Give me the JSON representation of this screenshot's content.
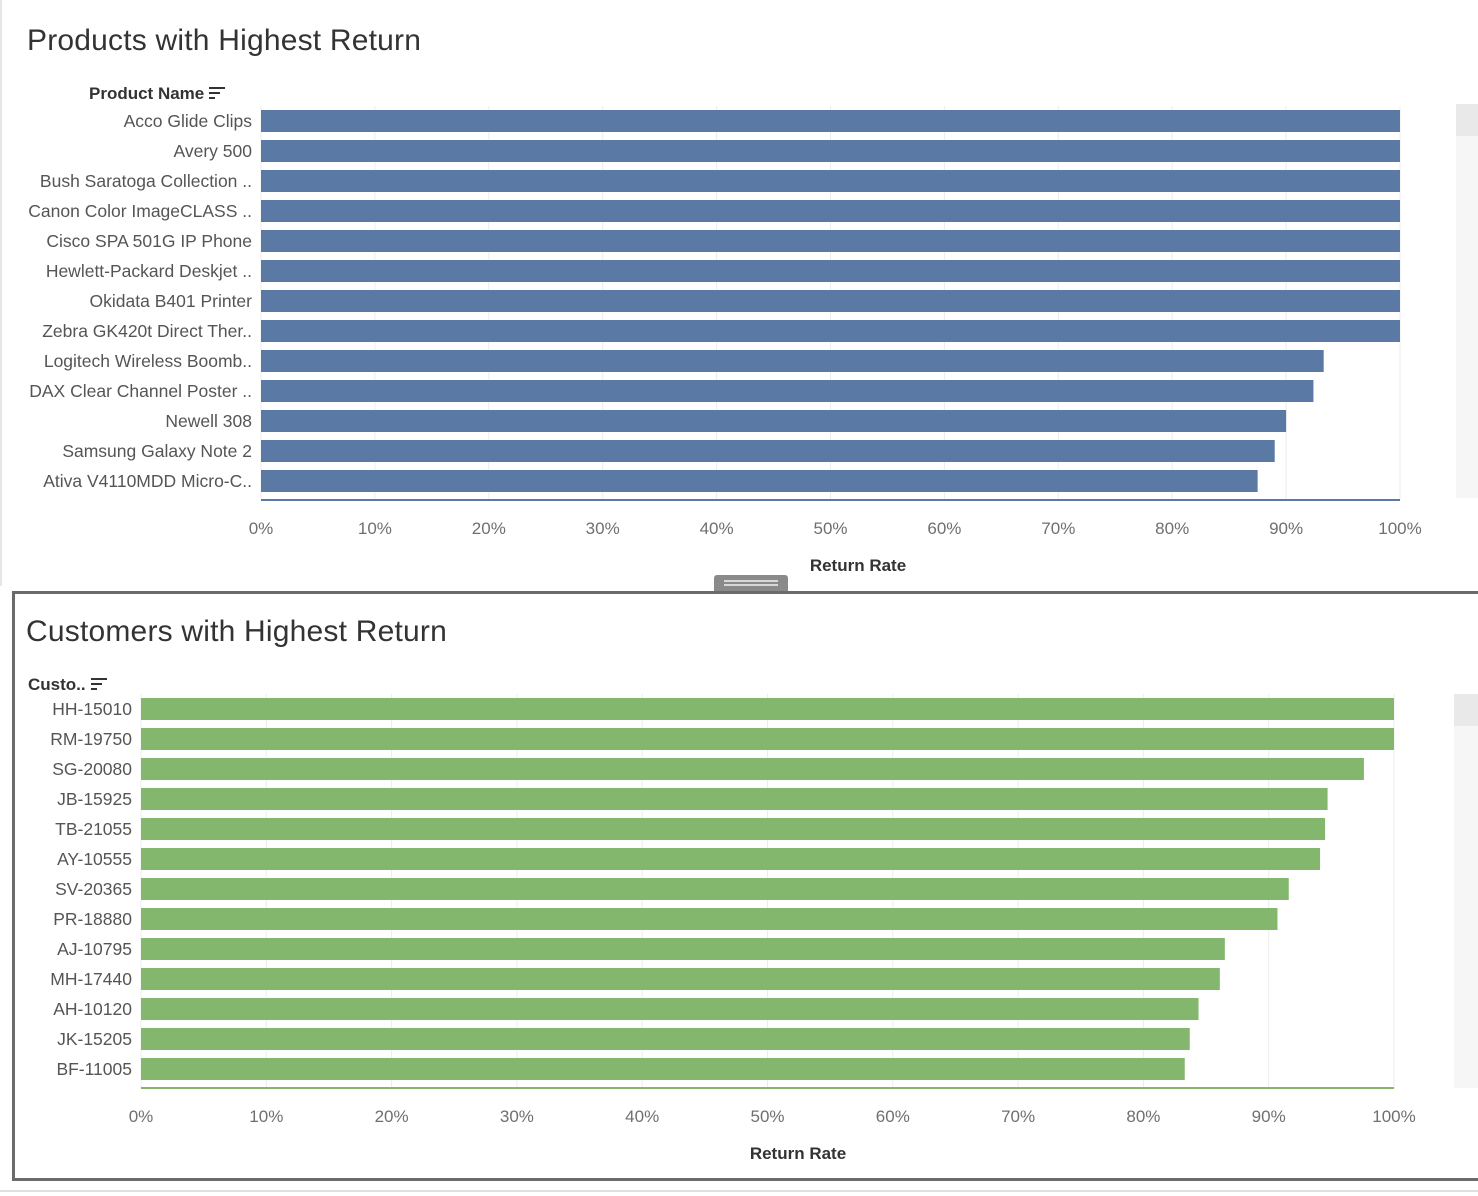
{
  "products_panel": {
    "title": "Products with Highest Return",
    "dimension_header": "Product Name"
  },
  "customers_panel": {
    "title": "Customers with Highest Return",
    "dimension_header": "Custo.."
  },
  "chart_data": [
    {
      "type": "bar",
      "orientation": "horizontal",
      "title": "Products with Highest Return",
      "ylabel": "Product Name",
      "xlabel": "Return Rate",
      "categories": [
        "Acco Glide Clips",
        "Avery 500",
        "Bush Saratoga Collection ..",
        "Canon Color ImageCLASS ..",
        "Cisco SPA 501G IP Phone",
        "Hewlett-Packard Deskjet ..",
        "Okidata B401 Printer",
        "Zebra GK420t Direct Ther..",
        "Logitech Wireless Boomb..",
        "DAX Clear Channel Poster ..",
        "Newell 308",
        "Samsung Galaxy Note 2",
        "Ativa V4110MDD Micro-C.."
      ],
      "values": [
        100,
        100,
        100,
        100,
        100,
        100,
        100,
        100,
        93.3,
        92.4,
        90.0,
        89.0,
        87.5
      ],
      "xlim": [
        0,
        100
      ],
      "xticks": [
        "0%",
        "10%",
        "20%",
        "30%",
        "40%",
        "50%",
        "60%",
        "70%",
        "80%",
        "90%",
        "100%"
      ],
      "color": "#5b79a5",
      "grid": true
    },
    {
      "type": "bar",
      "orientation": "horizontal",
      "title": "Customers with Highest Return",
      "ylabel": "Custo..",
      "xlabel": "Return Rate",
      "categories": [
        "HH-15010",
        "RM-19750",
        "SG-20080",
        "JB-15925",
        "TB-21055",
        "AY-10555",
        "SV-20365",
        "PR-18880",
        "AJ-10795",
        "MH-17440",
        "AH-10120",
        "JK-15205",
        "BF-11005"
      ],
      "values": [
        100,
        100,
        97.6,
        94.7,
        94.5,
        94.1,
        91.6,
        90.7,
        86.5,
        86.1,
        84.4,
        83.7,
        83.3
      ],
      "xlim": [
        0,
        100
      ],
      "xticks": [
        "0%",
        "10%",
        "20%",
        "30%",
        "40%",
        "50%",
        "60%",
        "70%",
        "80%",
        "90%",
        "100%"
      ],
      "color": "#84b76e",
      "grid": true
    }
  ]
}
